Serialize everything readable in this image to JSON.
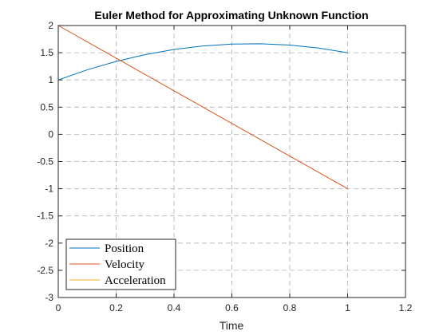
{
  "chart_data": {
    "type": "line",
    "title": "Euler Method for Approximating Unknown Function",
    "xlabel": "Time",
    "ylabel": "",
    "xlim": [
      0,
      1.2
    ],
    "ylim": [
      -3,
      2
    ],
    "x_ticks": [
      "0",
      "0.2",
      "0.4",
      "0.6",
      "0.8",
      "1",
      "1.2"
    ],
    "y_ticks": [
      "2",
      "1.5",
      "1",
      "0.5",
      "0",
      "-0.5",
      "-1",
      "-1.5",
      "-2",
      "-2.5",
      "-3"
    ],
    "grid": true,
    "legend_position": "bottom-left",
    "series": [
      {
        "name": "Position",
        "color": "#0072BD",
        "x": [
          0,
          0.1,
          0.2,
          0.3,
          0.4,
          0.5,
          0.6,
          0.7,
          0.8,
          0.9,
          1.0
        ],
        "y": [
          1.0,
          1.185,
          1.34,
          1.465,
          1.56,
          1.625,
          1.66,
          1.665,
          1.64,
          1.585,
          1.5
        ]
      },
      {
        "name": "Velocity",
        "color": "#D95319",
        "x": [
          0,
          1.0
        ],
        "y": [
          2.0,
          -1.0
        ]
      },
      {
        "name": "Acceleration",
        "color": "#EDB120",
        "x": [
          0,
          1.0
        ],
        "y": [
          -3.0,
          -3.0
        ]
      }
    ]
  }
}
